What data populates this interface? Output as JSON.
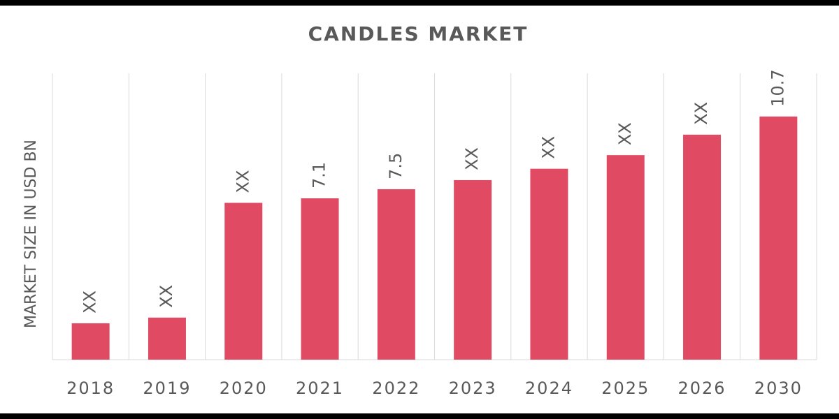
{
  "chart_data": {
    "type": "bar",
    "title": "CANDLES MARKET",
    "y_label": "MARKET SIZE IN USD BN",
    "categories": [
      "2018",
      "2019",
      "2020",
      "2021",
      "2022",
      "2023",
      "2024",
      "2025",
      "2026",
      "2030"
    ],
    "values": [
      1.6,
      1.85,
      6.9,
      7.1,
      7.5,
      7.9,
      8.4,
      9.0,
      9.9,
      10.7
    ],
    "value_labels": [
      "XX",
      "XX",
      "XX",
      "7.1",
      "7.5",
      "XX",
      "XX",
      "XX",
      "XX",
      "10.7"
    ],
    "color": "#e04a62",
    "ylim": [
      0,
      12.6
    ]
  }
}
